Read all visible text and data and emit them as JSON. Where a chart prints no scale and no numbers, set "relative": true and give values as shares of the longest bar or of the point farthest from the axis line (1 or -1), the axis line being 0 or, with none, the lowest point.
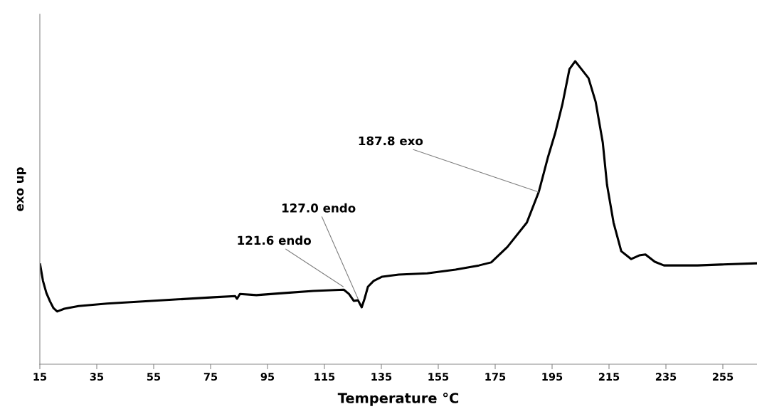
{
  "chart_data": {
    "type": "line",
    "relative": true,
    "xlabel": "Temperature °C",
    "ylabel": "exo up",
    "xlim": [
      15,
      267
    ],
    "xticks": [
      15,
      35,
      55,
      75,
      95,
      115,
      135,
      155,
      175,
      195,
      215,
      235,
      255
    ],
    "marker": "none",
    "line_style": "solid",
    "tick_labels": "x",
    "annotations": [
      {
        "text": "121.6 endo",
        "x": 121.6,
        "y": 0.256
      },
      {
        "text": "127.0 endo",
        "x": 126.8,
        "y": 0.216
      },
      {
        "text": "187.8 exo",
        "x": 190.3,
        "y": 0.568
      }
    ],
    "series": [
      {
        "color": "#000000",
        "x": [
          15.1,
          16.1,
          17.3,
          18.6,
          19.8,
          21.1,
          23.6,
          28.6,
          38.6,
          51.1,
          63.6,
          76.1,
          83.6,
          84.3,
          85.3,
          91.1,
          101.1,
          111.1,
          121.8,
          123.6,
          125.3,
          126.8,
          128.1,
          129.1,
          130.3,
          132.3,
          135.3,
          141.1,
          151.1,
          161.1,
          169.3,
          173.6,
          179.3,
          186.1,
          190.3,
          193.6,
          196.1,
          198.6,
          201.1,
          203.1,
          205.3,
          207.8,
          210.3,
          212.8,
          214.3,
          216.6,
          219.3,
          222.8,
          225.6,
          227.8,
          231.1,
          234.3,
          246.1,
          254.3,
          266.8
        ],
        "values": [
          0.329,
          0.275,
          0.235,
          0.207,
          0.185,
          0.174,
          0.183,
          0.192,
          0.2,
          0.207,
          0.214,
          0.221,
          0.225,
          0.216,
          0.232,
          0.228,
          0.235,
          0.242,
          0.246,
          0.232,
          0.209,
          0.211,
          0.188,
          0.216,
          0.256,
          0.275,
          0.289,
          0.296,
          0.3,
          0.312,
          0.326,
          0.336,
          0.387,
          0.467,
          0.568,
          0.685,
          0.763,
          0.857,
          0.974,
          1.0,
          0.974,
          0.944,
          0.866,
          0.732,
          0.592,
          0.467,
          0.373,
          0.347,
          0.359,
          0.362,
          0.338,
          0.326,
          0.326,
          0.329,
          0.333
        ]
      }
    ]
  }
}
